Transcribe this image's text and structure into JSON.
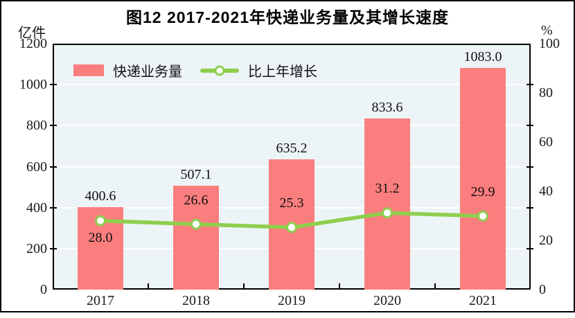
{
  "figure": {
    "title": "图12  2017-2021年快递业务量及其增长速度",
    "left_axis_unit": "亿件",
    "right_axis_unit": "%"
  },
  "legend": [
    {
      "label": "快递业务量",
      "symbol": "bar-swatch",
      "color": "#FB7E7E"
    },
    {
      "label": "比上年增长",
      "symbol": "line-marker",
      "color": "#8FCE4E"
    }
  ],
  "chart_data": {
    "type": "bar",
    "subtype": "bar-line-combo",
    "title": "图12  2017-2021年快递业务量及其增长速度",
    "categories": [
      "2017",
      "2018",
      "2019",
      "2020",
      "2021"
    ],
    "series": [
      {
        "name": "快递业务量",
        "type": "bar",
        "axis": "left",
        "unit": "亿件",
        "values": [
          400.6,
          507.1,
          635.2,
          833.6,
          1083.0
        ],
        "labels": [
          "400.6",
          "507.1",
          "635.2",
          "833.6",
          "1083.0"
        ],
        "color": "#FB7E7E"
      },
      {
        "name": "比上年增长",
        "type": "line",
        "axis": "right",
        "unit": "%",
        "values": [
          28.0,
          26.6,
          25.3,
          31.2,
          29.9
        ],
        "labels": [
          "28.0",
          "26.6",
          "25.3",
          "31.2",
          "29.9"
        ],
        "color": "#8FCE4E",
        "marker": {
          "shape": "circle",
          "fill": "#FFFFFF",
          "stroke": "#8FCE4E"
        }
      }
    ],
    "left_axis": {
      "label": "亿件",
      "min": 0,
      "max": 1200,
      "tick_step": 200,
      "ticks": [
        0,
        200,
        400,
        600,
        800,
        1000,
        1200
      ]
    },
    "right_axis": {
      "label": "%",
      "min": 0,
      "max": 100,
      "tick_step": 20,
      "ticks": [
        0,
        20,
        40,
        60,
        80,
        100
      ]
    },
    "grid": true,
    "gridline_color": "#FFFFFF",
    "plot_background": "#ECF4F7",
    "frame_color": "#000000",
    "legend_position": "top-left-inside"
  }
}
